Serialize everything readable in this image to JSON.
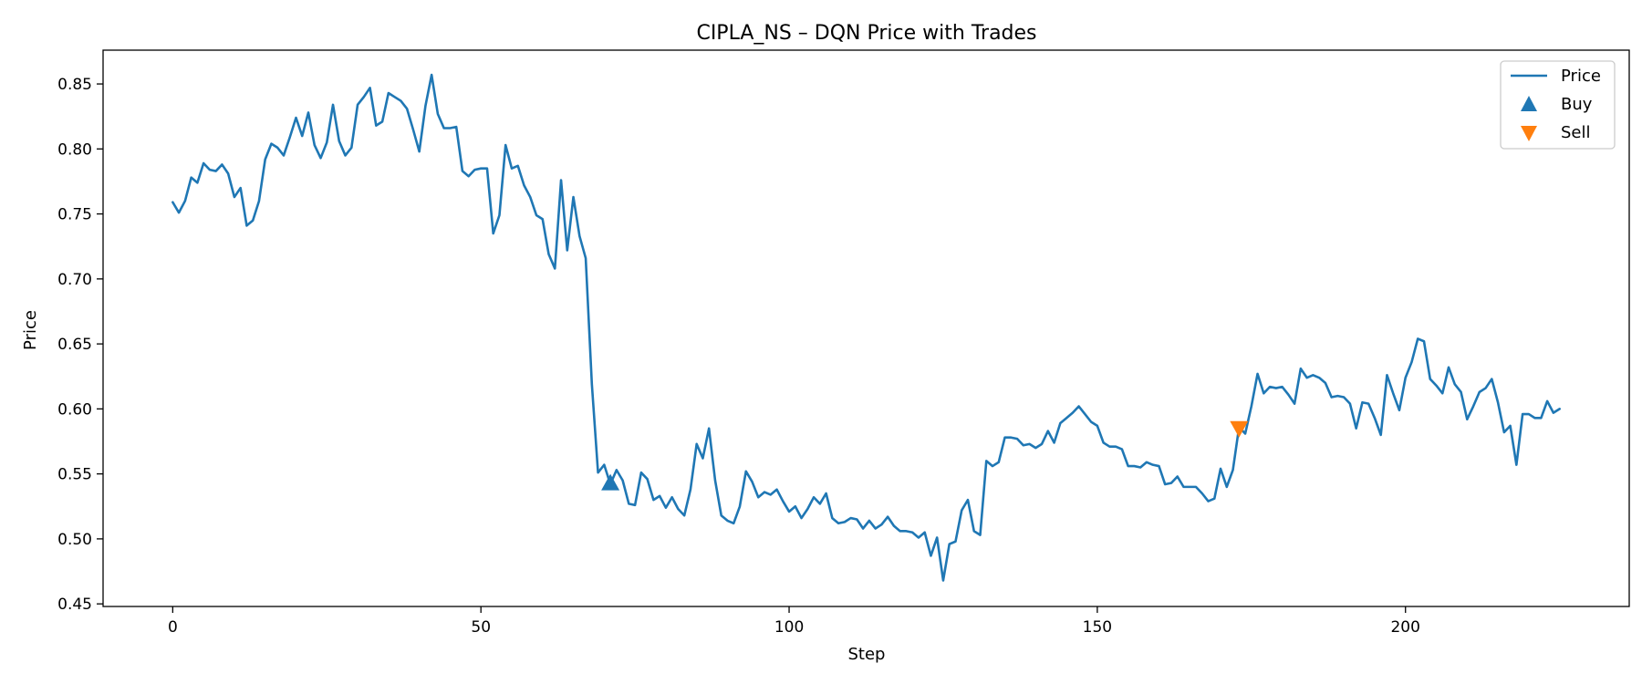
{
  "chart_data": {
    "type": "line",
    "title": "CIPLA_NS – DQN Price with Trades",
    "xlabel": "Step",
    "ylabel": "Price",
    "xlim": [
      -11.3,
      236.3
    ],
    "ylim": [
      0.448,
      0.876
    ],
    "x_ticks": [
      0,
      50,
      100,
      150,
      200
    ],
    "y_ticks": [
      0.45,
      0.5,
      0.55,
      0.6,
      0.65,
      0.7,
      0.75,
      0.8,
      0.85
    ],
    "grid": false,
    "legend": {
      "position": "top-right",
      "entries": [
        "Price",
        "Buy",
        "Sell"
      ]
    },
    "colors": {
      "price": "#1f77b4",
      "buy": "#1f77b4",
      "sell": "#ff7f0e"
    },
    "series": [
      {
        "name": "Price",
        "values": [
          0.759,
          0.751,
          0.76,
          0.778,
          0.774,
          0.789,
          0.784,
          0.783,
          0.788,
          0.781,
          0.763,
          0.77,
          0.741,
          0.745,
          0.76,
          0.792,
          0.804,
          0.801,
          0.795,
          0.809,
          0.824,
          0.81,
          0.828,
          0.803,
          0.793,
          0.805,
          0.834,
          0.806,
          0.795,
          0.801,
          0.834,
          0.84,
          0.847,
          0.818,
          0.821,
          0.843,
          0.84,
          0.837,
          0.831,
          0.815,
          0.798,
          0.833,
          0.857,
          0.827,
          0.816,
          0.816,
          0.817,
          0.783,
          0.779,
          0.784,
          0.785,
          0.785,
          0.735,
          0.749,
          0.803,
          0.785,
          0.787,
          0.772,
          0.763,
          0.749,
          0.746,
          0.719,
          0.708,
          0.776,
          0.722,
          0.763,
          0.733,
          0.716,
          0.619,
          0.551,
          0.557,
          0.542,
          0.553,
          0.545,
          0.527,
          0.526,
          0.551,
          0.546,
          0.53,
          0.533,
          0.524,
          0.532,
          0.523,
          0.518,
          0.538,
          0.573,
          0.562,
          0.585,
          0.545,
          0.518,
          0.514,
          0.512,
          0.525,
          0.552,
          0.544,
          0.532,
          0.536,
          0.534,
          0.538,
          0.529,
          0.521,
          0.525,
          0.516,
          0.523,
          0.532,
          0.527,
          0.535,
          0.516,
          0.512,
          0.513,
          0.516,
          0.515,
          0.508,
          0.514,
          0.508,
          0.511,
          0.517,
          0.51,
          0.506,
          0.506,
          0.505,
          0.501,
          0.505,
          0.487,
          0.501,
          0.468,
          0.496,
          0.498,
          0.522,
          0.53,
          0.506,
          0.503,
          0.56,
          0.556,
          0.559,
          0.578,
          0.578,
          0.577,
          0.572,
          0.573,
          0.57,
          0.573,
          0.583,
          0.574,
          0.589,
          0.593,
          0.597,
          0.602,
          0.596,
          0.59,
          0.587,
          0.574,
          0.571,
          0.571,
          0.569,
          0.556,
          0.556,
          0.555,
          0.559,
          0.557,
          0.556,
          0.542,
          0.543,
          0.548,
          0.54,
          0.54,
          0.54,
          0.535,
          0.529,
          0.531,
          0.554,
          0.54,
          0.553,
          0.586,
          0.581,
          0.602,
          0.627,
          0.612,
          0.617,
          0.616,
          0.617,
          0.611,
          0.604,
          0.631,
          0.624,
          0.626,
          0.624,
          0.62,
          0.609,
          0.61,
          0.609,
          0.604,
          0.585,
          0.605,
          0.604,
          0.593,
          0.58,
          0.626,
          0.612,
          0.599,
          0.624,
          0.636,
          0.654,
          0.652,
          0.623,
          0.618,
          0.612,
          0.632,
          0.619,
          0.613,
          0.592,
          0.602,
          0.613,
          0.616,
          0.623,
          0.605,
          0.582,
          0.587,
          0.557,
          0.596,
          0.596,
          0.593,
          0.593,
          0.606,
          0.597,
          0.6
        ]
      }
    ],
    "markers": [
      {
        "name": "Buy",
        "x": 71,
        "y": 0.543,
        "shape": "triangle-up"
      },
      {
        "name": "Sell",
        "x": 173,
        "y": 0.585,
        "shape": "triangle-down"
      }
    ]
  }
}
